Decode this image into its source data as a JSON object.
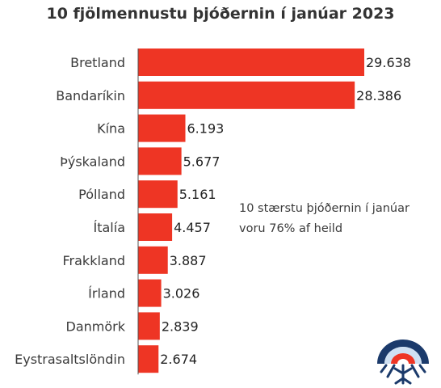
{
  "chart_data": {
    "type": "bar",
    "orientation": "horizontal",
    "title": "10 fjölmennustu þjóðernin í janúar 2023",
    "categories": [
      "Bretland",
      "Bandaríkin",
      "Kína",
      "Þýskaland",
      "Pólland",
      "Ítalía",
      "Frakkland",
      "Írland",
      "Danmörk",
      "Eystrasaltslöndin"
    ],
    "values": [
      29638,
      28386,
      6193,
      5677,
      5161,
      4457,
      3887,
      3026,
      2839,
      2674
    ],
    "value_labels": [
      "29.638",
      "28.386",
      "6.193",
      "5.677",
      "5.161",
      "4.457",
      "3.887",
      "3.026",
      "2.839",
      "2.674"
    ],
    "bar_color": "#ee3524",
    "xlim": [
      0,
      29638
    ],
    "annotation": "10 stærstu þjóðernin í janúar voru 76% af heild",
    "grid": false,
    "legend": "none"
  },
  "logo": {
    "icon": "bridge-snowflake-logo-icon",
    "colors": {
      "navy": "#1b3a6b",
      "red": "#ee3524",
      "light": "#cfe0f2"
    }
  }
}
